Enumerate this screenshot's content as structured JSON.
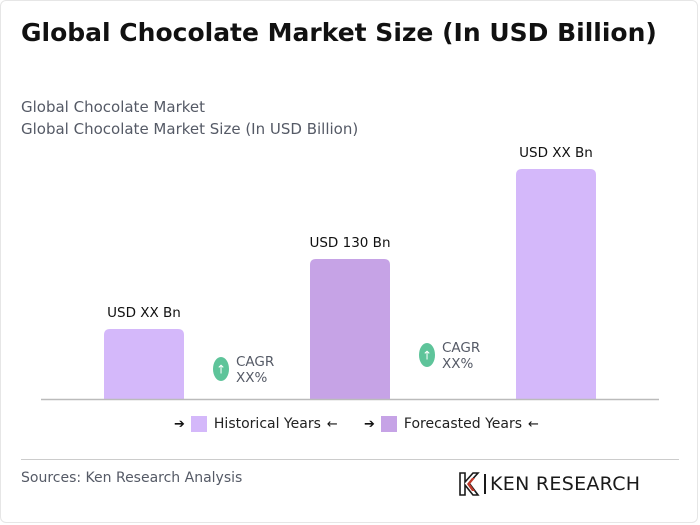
{
  "page": {
    "title": "Global Chocolate Market Size (In USD Billion)",
    "subtitle_line1": "Global Chocolate Market",
    "subtitle_line2": "Global Chocolate Market Size (In USD Billion)"
  },
  "chart_data": {
    "type": "bar",
    "categories": [
      "",
      "",
      ""
    ],
    "values": [
      70,
      140,
      230
    ],
    "value_labels": [
      "USD XX Bn",
      "USD 130 Bn",
      "USD XX Bn"
    ],
    "bar_colors": [
      "#d4b8fa",
      "#c6a3e6",
      "#d4b8fa"
    ],
    "bar_kind": [
      "Historical Years",
      "Forecasted Years",
      "Historical Years"
    ],
    "ylim": [
      0,
      240
    ],
    "grid": false,
    "cagr": [
      {
        "line1": "CAGR",
        "line2": "XX%"
      },
      {
        "line1": "CAGR",
        "line2": "XX%"
      }
    ],
    "legend": [
      {
        "label": "Historical Years",
        "color": "#d4b8fa"
      },
      {
        "label": "Forecasted Years",
        "color": "#c6a3e6"
      }
    ],
    "legend_placement": "bottom",
    "cagr_icon_color": "#5ec49a"
  },
  "footer": {
    "source": "Sources: Ken Research Analysis",
    "logo_text": "KEN RESEARCH",
    "logo_icon": "ken-research-logo-icon"
  },
  "colors": {
    "axis": "#bbbbbb",
    "text": "#111111",
    "muted": "#555a66"
  }
}
